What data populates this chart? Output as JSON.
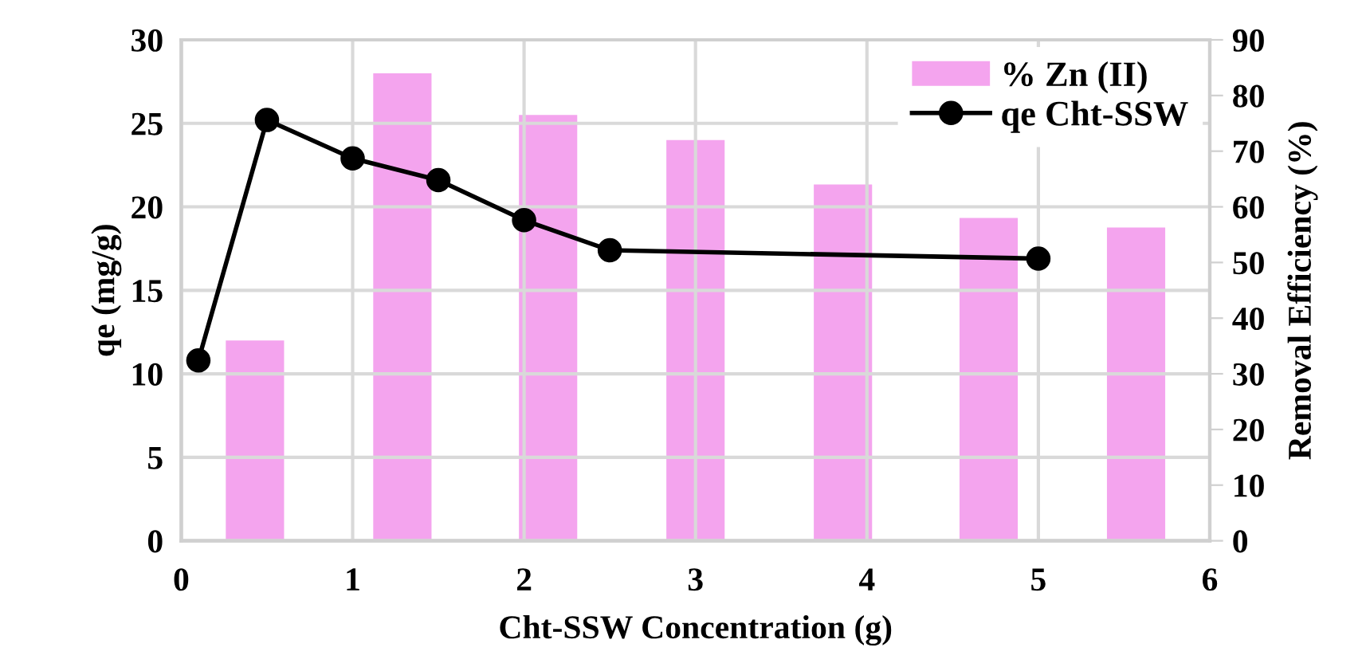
{
  "chart_data": {
    "type": "bar",
    "xlabel": "Cht-SSW Concentration (g)",
    "ylabel": "qe (mg/g)",
    "y2label": "Removal Efficiency (%)",
    "series": [
      {
        "name": "% Zn (II)",
        "axis": "y2",
        "color": "#f4a4ee",
        "x": [
          0.43,
          1.29,
          2.14,
          3.0,
          3.86,
          4.71,
          5.57
        ],
        "values": [
          36,
          84,
          76.5,
          72,
          64,
          58,
          56.3
        ]
      },
      {
        "name": "qe Cht-SSW",
        "type": "line",
        "color": "#000000",
        "marker": "circle",
        "line_style": "solid",
        "x": [
          0.1,
          0.5,
          1,
          1.5,
          2,
          2.5,
          5
        ],
        "values": [
          10.8,
          25.2,
          22.9,
          21.6,
          19.2,
          17.4,
          16.9
        ]
      }
    ],
    "xlim": [
      0,
      6
    ],
    "xticks": [
      0,
      1,
      2,
      3,
      4,
      5,
      6
    ],
    "ylim": [
      0,
      30
    ],
    "yticks": [
      0,
      5,
      10,
      15,
      20,
      25,
      30
    ],
    "y2lim": [
      0,
      90
    ],
    "y2ticks": [
      0,
      10,
      20,
      30,
      40,
      50,
      60,
      70,
      80,
      90
    ],
    "grid": true,
    "legend": "top right"
  }
}
